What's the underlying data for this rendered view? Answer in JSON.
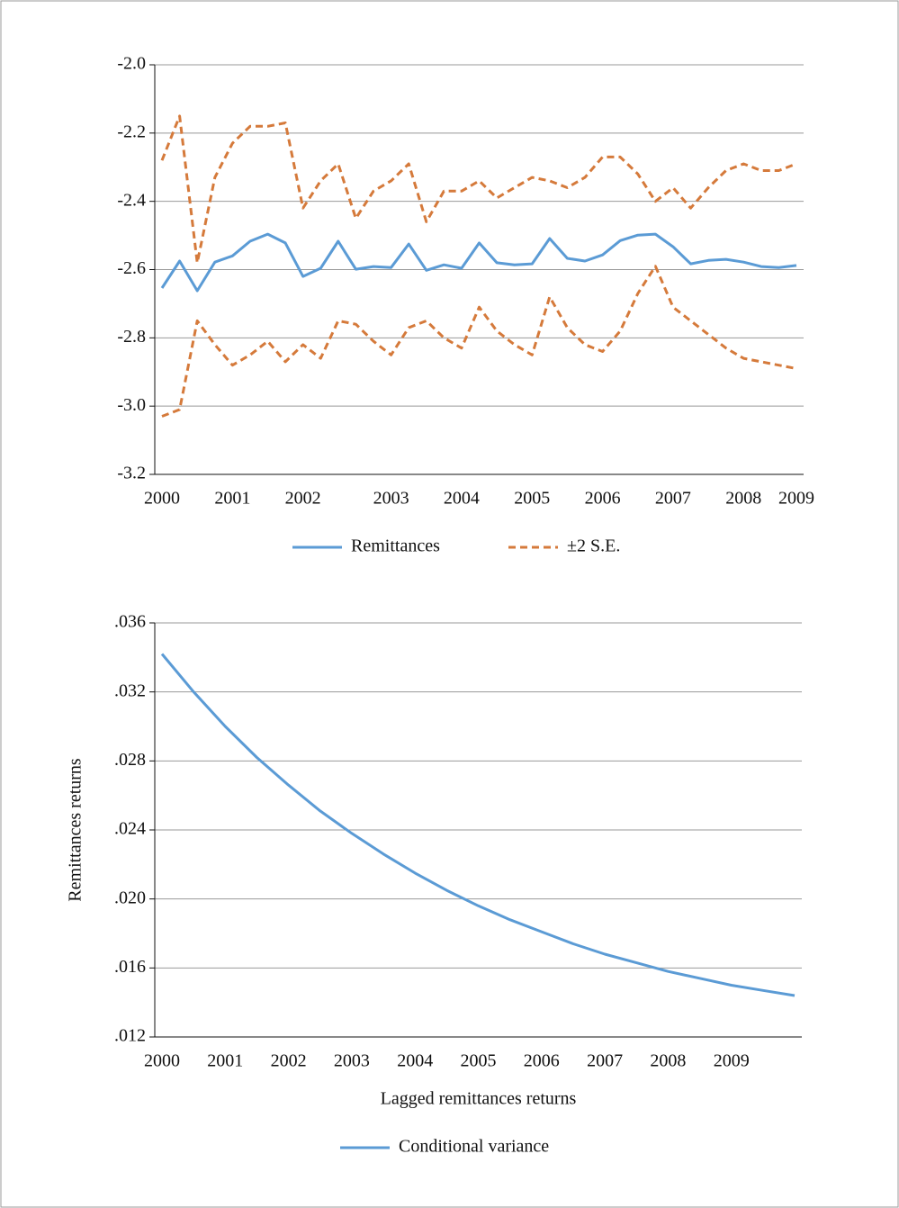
{
  "chart_data": [
    {
      "type": "line",
      "categories": [
        "2000",
        null,
        null,
        null,
        "2001",
        null,
        null,
        null,
        "2002",
        null,
        null,
        null,
        null,
        "2003",
        null,
        null,
        null,
        "2004",
        null,
        null,
        null,
        "2005",
        null,
        null,
        null,
        "2006",
        null,
        null,
        null,
        "2007",
        null,
        null,
        null,
        "2008",
        null,
        null,
        "2009"
      ],
      "series": [
        {
          "name": "Remittances",
          "color": "#5b9bd5",
          "dashed": false,
          "values": [
            -2.654,
            -2.575,
            -2.662,
            -2.578,
            -2.56,
            -2.517,
            -2.496,
            -2.522,
            -2.62,
            -2.596,
            -2.517,
            -2.599,
            -2.591,
            -2.594,
            -2.525,
            -2.602,
            -2.586,
            -2.596,
            -2.522,
            -2.58,
            -2.586,
            -2.583,
            -2.509,
            -2.567,
            -2.575,
            -2.557,
            -2.515,
            -2.499,
            -2.496,
            -2.533,
            -2.583,
            -2.573,
            -2.57,
            -2.578,
            -2.591,
            -2.594,
            -2.588
          ]
        },
        {
          "name": "±2 S.E.",
          "color": "#d57a3b",
          "dashed": true,
          "values": [
            -2.28,
            -2.15,
            -2.58,
            -2.33,
            -2.23,
            -2.18,
            -2.18,
            -2.17,
            -2.42,
            -2.34,
            -2.29,
            -2.45,
            -2.37,
            -2.34,
            -2.29,
            -2.46,
            -2.37,
            -2.37,
            -2.34,
            -2.39,
            -2.36,
            -2.33,
            -2.34,
            -2.36,
            -2.33,
            -2.27,
            -2.27,
            -2.32,
            -2.4,
            -2.36,
            -2.42,
            -2.36,
            -2.31,
            -2.29,
            -2.31,
            -2.31,
            -2.29
          ],
          "lower_values": [
            -3.03,
            -3.01,
            -2.75,
            -2.82,
            -2.88,
            -2.85,
            -2.81,
            -2.87,
            -2.82,
            -2.86,
            -2.75,
            -2.76,
            -2.81,
            -2.85,
            -2.77,
            -2.75,
            -2.8,
            -2.83,
            -2.71,
            -2.78,
            -2.82,
            -2.85,
            -2.68,
            -2.77,
            -2.82,
            -2.84,
            -2.78,
            -2.67,
            -2.59,
            -2.71,
            -2.75,
            -2.79,
            -2.83,
            -2.86,
            -2.87,
            -2.88,
            -2.89
          ]
        }
      ],
      "ylim": [
        -3.2,
        -2.0
      ],
      "yticks": [
        {
          "value": -2.0,
          "label": "-2.0"
        },
        -2.2,
        -2.4,
        -2.6,
        -2.8,
        {
          "value": -3.0,
          "label": "-3.0"
        },
        -3.2
      ],
      "grid": true
    },
    {
      "type": "line",
      "xlabel": "Lagged remittances returns",
      "ylabel": "Remittances returns",
      "categories": [
        "2000",
        null,
        "2001",
        null,
        "2002",
        null,
        "2003",
        null,
        "2004",
        null,
        "2005",
        null,
        "2006",
        null,
        "2007",
        null,
        "2008",
        null,
        "2009",
        null,
        null
      ],
      "series": [
        {
          "name": "Conditional variance",
          "color": "#5b9bd5",
          "dashed": false,
          "values": [
            0.0342,
            0.032,
            0.03,
            0.0282,
            0.0266,
            0.0251,
            0.0238,
            0.0226,
            0.0215,
            0.0205,
            0.0196,
            0.0188,
            0.0181,
            0.0174,
            0.0168,
            0.0163,
            0.0158,
            0.0154,
            0.015,
            0.0147,
            0.0144
          ]
        }
      ],
      "ylim": [
        0.012,
        0.036
      ],
      "yticks": [
        {
          "value": 0.012,
          "label": ".012"
        },
        {
          "value": 0.016,
          "label": ".016"
        },
        {
          "value": 0.02,
          "label": ".020"
        },
        {
          "value": 0.024,
          "label": ".024"
        },
        {
          "value": 0.028,
          "label": ".028"
        },
        {
          "value": 0.032,
          "label": ".032"
        },
        {
          "value": 0.036,
          "label": ".036"
        }
      ],
      "grid": true
    }
  ]
}
